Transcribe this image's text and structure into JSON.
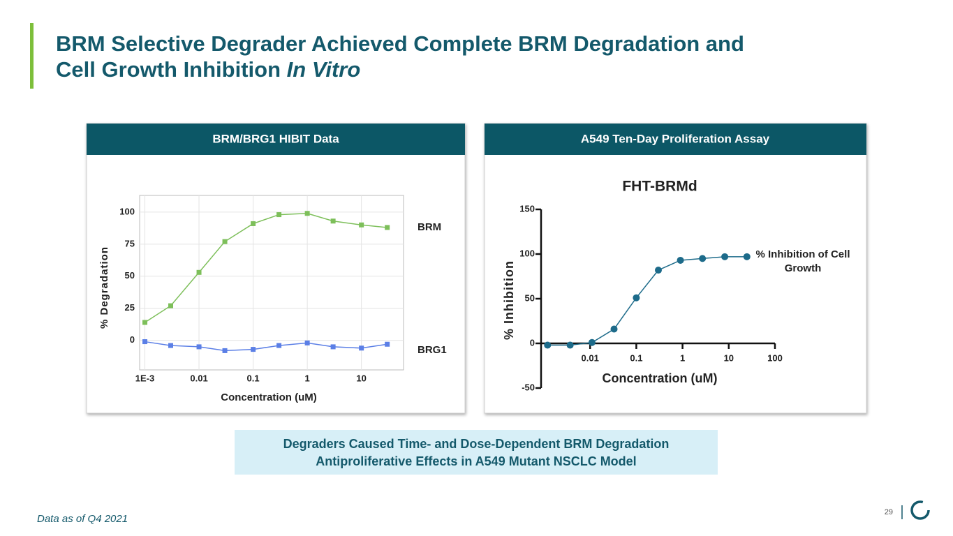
{
  "slide": {
    "title_line1": "BRM Selective Degrader Achieved Complete BRM Degradation and",
    "title_line2": "Cell Growth Inhibition",
    "title_italic": "In Vitro",
    "panel_headers": [
      "BRM/BRG1 HIBIT Data",
      "A549 Ten-Day Proliferation Assay"
    ],
    "summary": [
      "Degraders Caused Time- and Dose-Dependent BRM Degradation",
      "Antiproliferative Effects in A549 Mutant NSCLC Model"
    ],
    "footnote": "Data as of Q4 2021",
    "page_number": "29"
  },
  "chart_data": [
    {
      "type": "scatter",
      "x_scale": "log",
      "grid": true,
      "marker": "square",
      "legend": "right-end",
      "x_label": "Concentration (uM)",
      "y_label": "% Degradation",
      "x": [
        0.001,
        0.003,
        0.01,
        0.03,
        0.1,
        0.3,
        1,
        3,
        10,
        30
      ],
      "xlim": [
        0.0008,
        60
      ],
      "xticks": [
        {
          "value": 0.001,
          "label": "1E-3"
        },
        0.01,
        0.1,
        1,
        10
      ],
      "ylim": [
        -23,
        113
      ],
      "yticks": [
        0,
        25,
        50,
        75,
        100
      ],
      "series": [
        {
          "name": "BRM",
          "color": "#7dbf5a",
          "values": [
            14,
            27,
            53,
            77,
            91,
            98,
            99,
            93,
            90,
            88
          ]
        },
        {
          "name": "BRG1",
          "color": "#5b7fe6",
          "values": [
            -1,
            -4,
            -5,
            -8,
            -7,
            -4,
            -2,
            -5,
            -6,
            -3
          ]
        }
      ]
    },
    {
      "type": "scatter",
      "x_scale": "log",
      "grid": false,
      "marker": "circle",
      "legend": "upper right",
      "title": "FHT-BRMd",
      "x_label": "Concentration (uM)",
      "y_label": "% Inhibition",
      "x": [
        0.0012,
        0.0037,
        0.011,
        0.033,
        0.1,
        0.3,
        0.9,
        2.7,
        8.2,
        24.7
      ],
      "xlim": [
        0.00087,
        100
      ],
      "xticks": [
        0.01,
        0.1,
        1,
        10,
        100
      ],
      "ylim": [
        -50,
        150
      ],
      "yticks": [
        -50,
        0,
        50,
        100,
        150
      ],
      "series": [
        {
          "name": "% Inhibition of Cell Growth",
          "color": "#1d6b8a",
          "values": [
            -2,
            -2,
            1,
            16,
            51,
            82,
            93,
            95,
            97,
            97
          ]
        }
      ]
    }
  ]
}
